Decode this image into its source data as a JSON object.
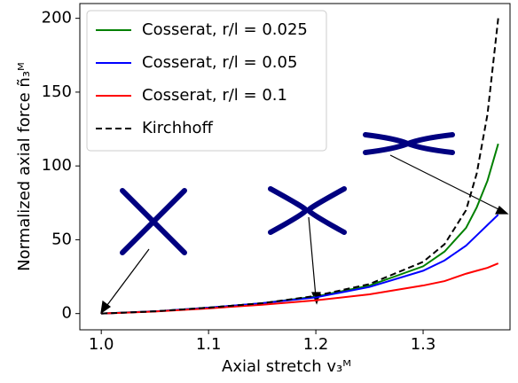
{
  "chart_data": {
    "type": "line",
    "x_label": "Axial stretch v₃ᴹ",
    "y_label": "Normalized axial force ñ₃ᴹ",
    "x": [
      1.0,
      1.05,
      1.1,
      1.15,
      1.2,
      1.25,
      1.3,
      1.32,
      1.34,
      1.35,
      1.36,
      1.37
    ],
    "series": [
      {
        "name": "Cosserat, r/l = 0.025",
        "color": "#008000",
        "dash": "solid",
        "values": [
          0,
          1.5,
          4,
          7,
          11.5,
          19,
          32,
          42,
          58,
          72,
          90,
          115
        ]
      },
      {
        "name": "Cosserat, r/l = 0.05",
        "color": "#0000ff",
        "dash": "solid",
        "values": [
          0,
          1.5,
          4,
          7,
          11,
          18,
          29,
          36,
          46,
          53,
          60,
          67
        ]
      },
      {
        "name": "Cosserat, r/l = 0.1",
        "color": "#ff0000",
        "dash": "solid",
        "values": [
          0,
          1.4,
          3.5,
          6,
          9,
          13,
          19,
          22,
          27,
          29,
          31,
          34
        ]
      },
      {
        "name": "Kirchhoff",
        "color": "#000000",
        "dash": "dashed",
        "values": [
          0,
          1.5,
          4,
          7,
          12,
          20,
          35,
          47,
          70,
          95,
          135,
          200
        ]
      }
    ],
    "xlim": [
      0.98,
      1.381
    ],
    "ylim": [
      -11,
      210
    ],
    "xticks": [
      {
        "value": 1.0,
        "label": "1.0"
      },
      1.1,
      1.2,
      1.3
    ],
    "yticks": [
      0,
      50,
      100,
      150,
      200
    ],
    "grid": false,
    "legend": "upper-left"
  }
}
